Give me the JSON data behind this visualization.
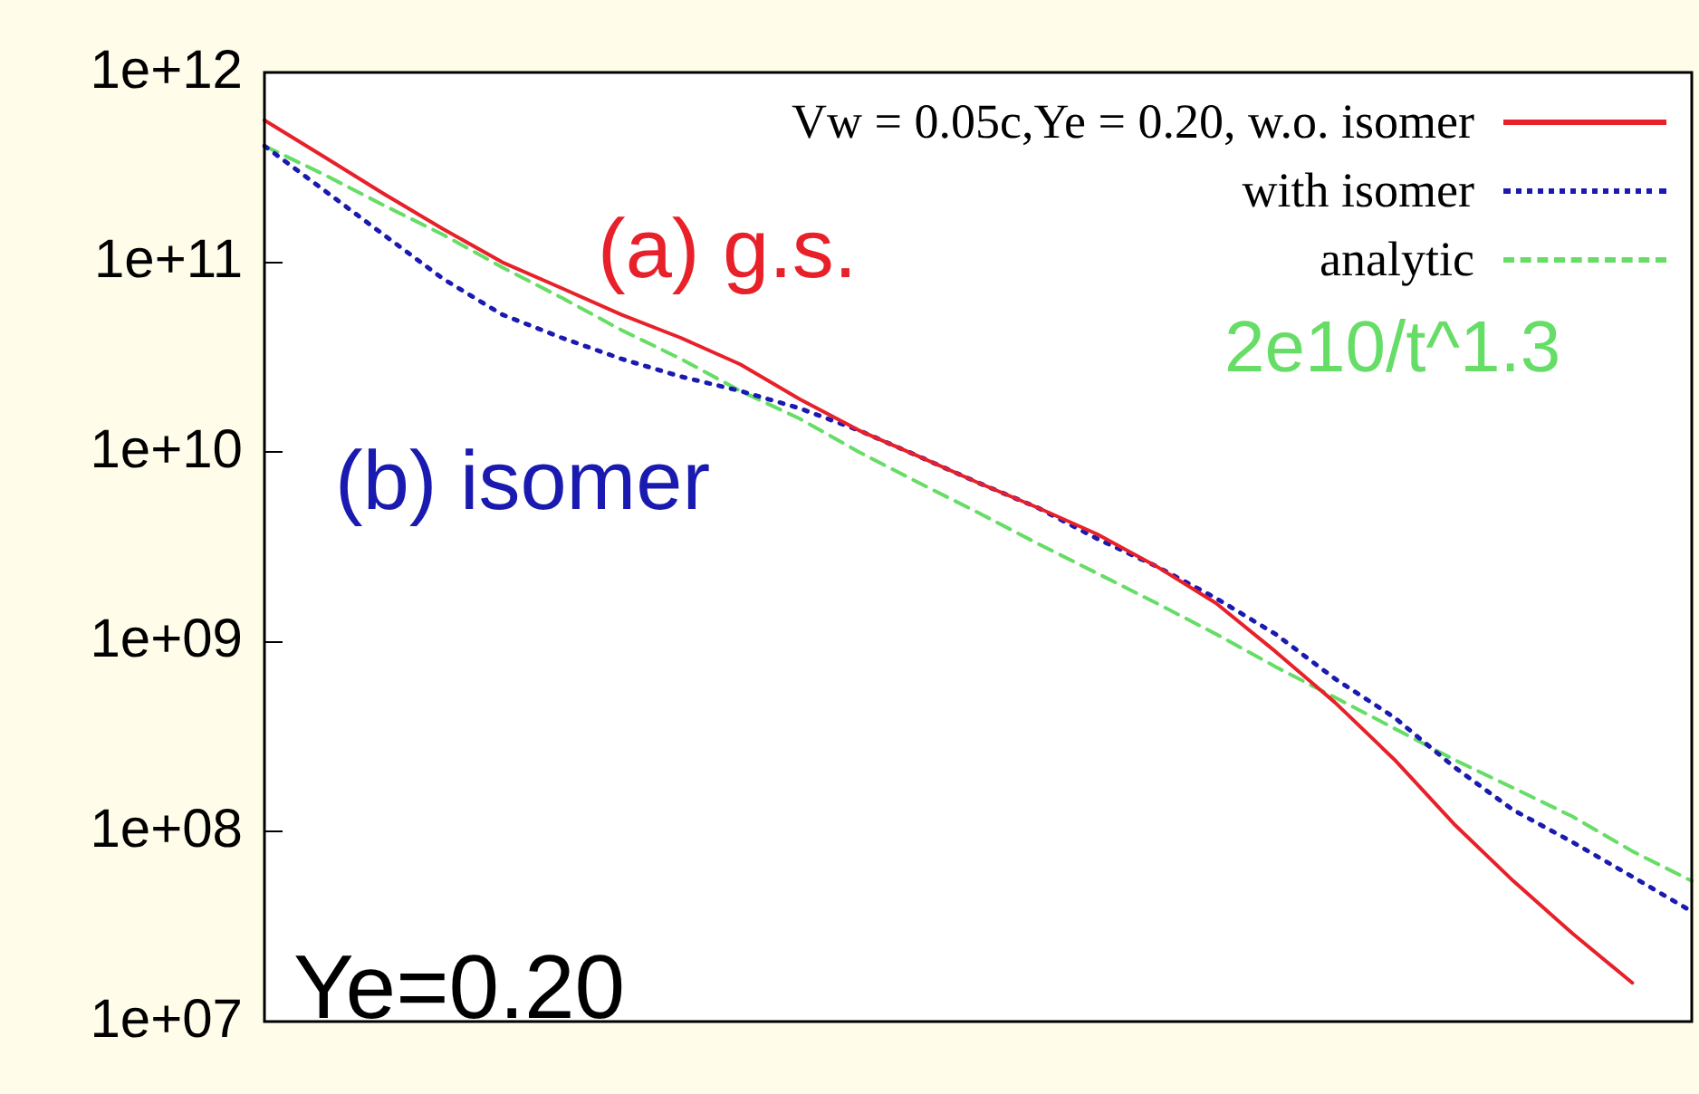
{
  "chart_data": {
    "type": "line",
    "categories": [
      null,
      null,
      null,
      null,
      null,
      null,
      null,
      null,
      null,
      null,
      null,
      null,
      null,
      null,
      null,
      null,
      null,
      null,
      null,
      null,
      null,
      null,
      null,
      null,
      null
    ],
    "series": [
      {
        "name": "Vw = 0.05c,Ye = 0.20, w.o. isomer",
        "color": "#e8202a",
        "line_style": "solid",
        "values": [
          560000000000.0,
          360000000000.0,
          230000000000.0,
          150000000000.0,
          100000000000.0,
          73000000000.0,
          53000000000.0,
          40000000000.0,
          29000000000.0,
          19000000000.0,
          13000000000.0,
          9500000000.0,
          6900000000.0,
          5100000000.0,
          3700000000.0,
          2500000000.0,
          1600000000.0,
          890000000.0,
          480000000.0,
          240000000.0,
          110000000.0,
          55000000.0,
          29000000.0,
          16000000.0,
          null
        ]
      },
      {
        "name": "with isomer",
        "color": "#1a1ab0",
        "line_style": "dotted",
        "values": [
          410000000000.0,
          240000000000.0,
          140000000000.0,
          82000000000.0,
          53000000000.0,
          40000000000.0,
          31000000000.0,
          25000000000.0,
          21000000000.0,
          17000000000.0,
          13000000000.0,
          9500000000.0,
          6900000000.0,
          5100000000.0,
          3500000000.0,
          2500000000.0,
          1700000000.0,
          1100000000.0,
          640000000.0,
          400000000.0,
          220000000.0,
          130000000.0,
          88000000.0,
          58000000.0,
          38000000.0
        ]
      },
      {
        "name": "analytic",
        "color": "#66dd66",
        "line_style": "dashed",
        "values": [
          410000000000.0,
          290000000000.0,
          200000000000.0,
          140000000000.0,
          94000000000.0,
          65000000000.0,
          44000000000.0,
          31000000000.0,
          21000000000.0,
          15000000000.0,
          10000000000.0,
          6900000000.0,
          4800000000.0,
          3300000000.0,
          2300000000.0,
          1600000000.0,
          1100000000.0,
          740000000.0,
          510000000.0,
          350000000.0,
          240000000.0,
          170000000.0,
          120000000.0,
          79000000.0,
          55000000.0
        ]
      }
    ],
    "log": "y",
    "ylim": [
      10000000.0,
      1000000000000.0
    ],
    "yticks": [
      {
        "value": 10000000.0,
        "label": "1e+07"
      },
      {
        "value": 100000000.0,
        "label": "1e+08"
      },
      {
        "value": 1000000000.0,
        "label": "1e+09"
      },
      {
        "value": 10000000000.0,
        "label": "1e+10"
      },
      {
        "value": 100000000000.0,
        "label": "1e+11"
      },
      {
        "value": 1000000000000.0,
        "label": "1e+12"
      }
    ],
    "tick_labels": "y",
    "grid": false,
    "legend": "top right",
    "marker": "none",
    "annotations": [
      "(a) g.s.",
      "(b) isomer",
      "2e10/t^1.3",
      "Ye=0.20"
    ]
  }
}
